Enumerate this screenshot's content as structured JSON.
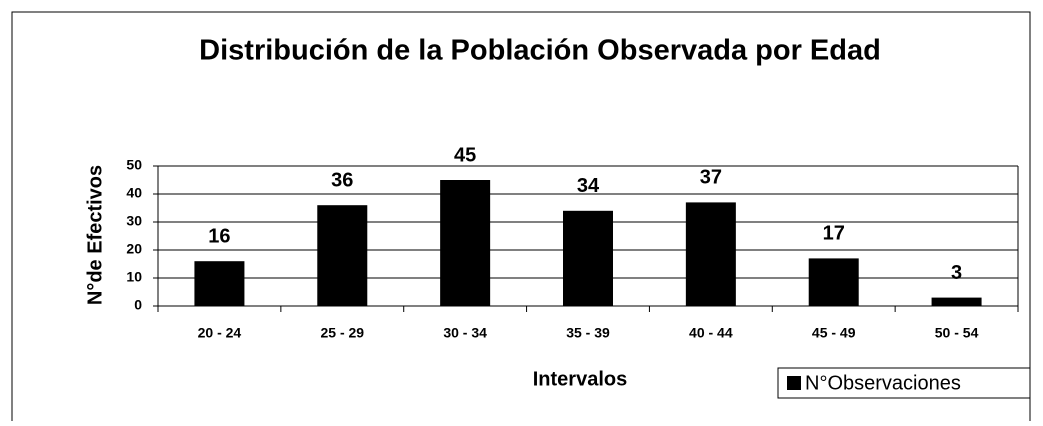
{
  "chart_data": {
    "type": "bar",
    "title": "Distribución de la Población Observada por Edad",
    "x_label": "Intervalos",
    "y_label": "N°de Efectivos",
    "categories": [
      "20 - 24",
      "25 - 29",
      "30 - 34",
      "35 - 39",
      "40 - 44",
      "45 - 49",
      "50 - 54"
    ],
    "series": [
      {
        "name": "N°Observaciones",
        "color": "#000000",
        "values": [
          16,
          36,
          45,
          34,
          37,
          17,
          3
        ]
      }
    ],
    "ylim": [
      0,
      50
    ],
    "yticks": [
      0,
      10,
      20,
      30,
      40,
      50
    ],
    "grid": true,
    "legend": "bottom-right"
  }
}
